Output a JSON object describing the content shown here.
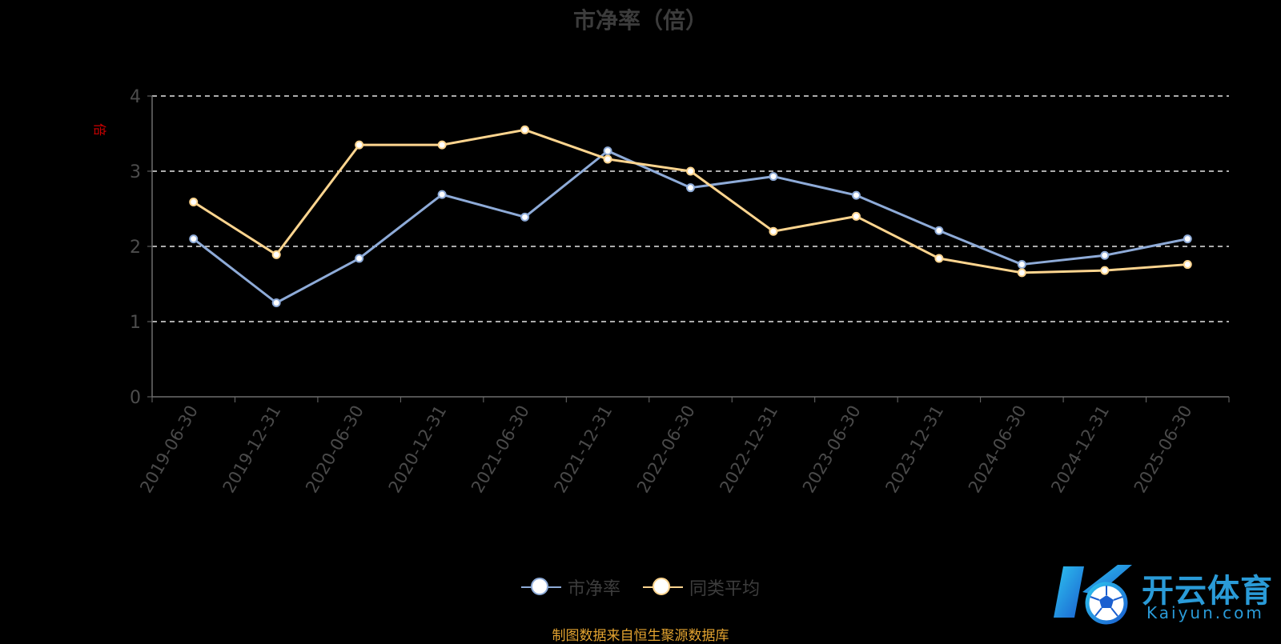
{
  "chart_data": {
    "type": "line",
    "title": "市净率（倍）",
    "ylabel": "倍",
    "categories": [
      "2019-06-30",
      "2019-12-31",
      "2020-06-30",
      "2020-12-31",
      "2021-06-30",
      "2021-12-31",
      "2022-06-30",
      "2022-12-31",
      "2023-06-30",
      "2023-12-31",
      "2024-06-30",
      "2024-12-31",
      "2025-06-30"
    ],
    "yticks": [
      0,
      1,
      2,
      3,
      4
    ],
    "ylim": [
      0,
      4
    ],
    "grid": true,
    "legend_position": "bottom",
    "series": [
      {
        "name": "市净率",
        "color": "#8eabd8",
        "values": [
          2.1,
          1.25,
          1.84,
          2.69,
          2.39,
          3.27,
          2.78,
          2.93,
          2.68,
          2.21,
          1.76,
          1.88,
          2.1
        ]
      },
      {
        "name": "同类平均",
        "color": "#fed58f",
        "values": [
          2.59,
          1.89,
          3.35,
          3.35,
          3.55,
          3.16,
          3.0,
          2.2,
          2.4,
          1.84,
          1.65,
          1.68,
          1.76
        ]
      }
    ]
  },
  "footer": {
    "source": "制图数据来自恒生聚源数据库"
  },
  "logo": {
    "name_cn": "开云体育",
    "name_en": "Kaiyun.com"
  }
}
